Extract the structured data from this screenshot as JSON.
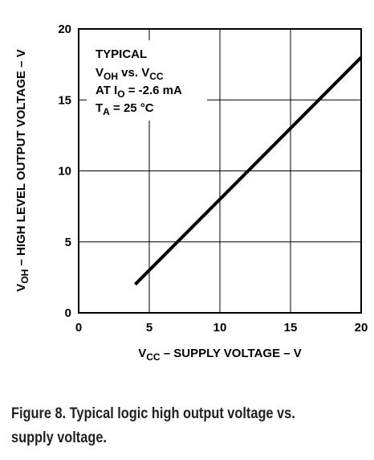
{
  "chart_data": {
    "type": "line",
    "x_label_main": "V",
    "x_label_sub": "CC",
    "x_label_rest": " – SUPPLY VOLTAGE – V",
    "y_label_main": "V",
    "y_label_sub": "OH",
    "y_label_rest": " – HIGH LEVEL OUTPUT VOLTAGE – V",
    "xlim": [
      0,
      20
    ],
    "ylim": [
      0,
      20
    ],
    "x_ticks": [
      "0",
      "5",
      "10",
      "15",
      "20"
    ],
    "y_ticks": [
      "0",
      "5",
      "10",
      "15",
      "20"
    ],
    "grid": true,
    "series": [
      {
        "x": [
          4,
          20
        ],
        "y": [
          2,
          18
        ]
      }
    ],
    "annotation": {
      "line1": "TYPICAL",
      "line2_main1": "V",
      "line2_sub1": "OH",
      "line2_mid": " vs. V",
      "line2_sub2": "CC",
      "line3_main": "AT I",
      "line3_sub": "O",
      "line3_rest": " = -2.6 mA",
      "line4_main": "T",
      "line4_sub": "A",
      "line4_rest": " = 25 °C"
    }
  },
  "caption": {
    "line1": "Figure 8. Typical logic high output voltage vs.",
    "line2": "supply voltage."
  }
}
